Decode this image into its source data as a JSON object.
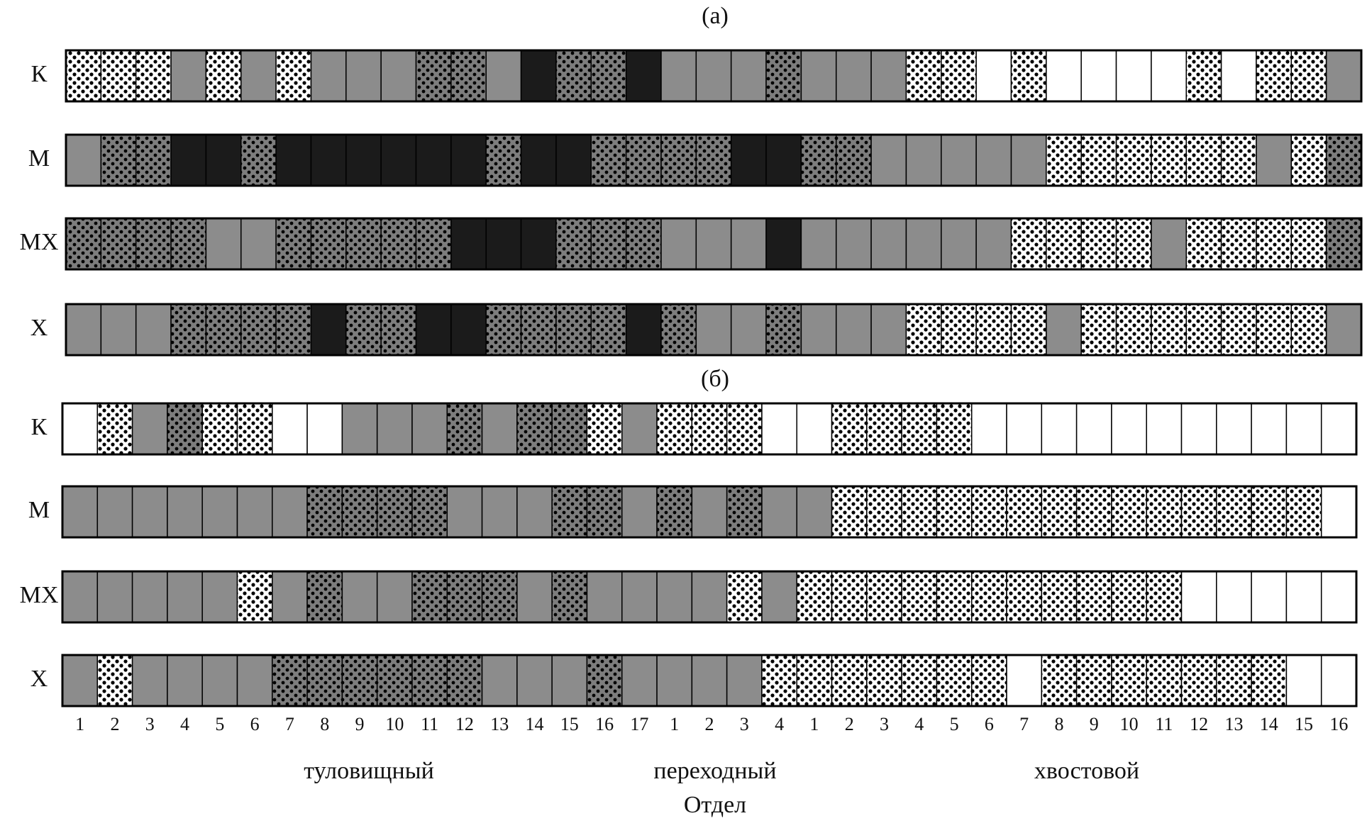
{
  "panels": [
    {
      "label": "(а)",
      "rows": [
        "К",
        "М",
        "МХ",
        "Х"
      ]
    },
    {
      "label": "(б)",
      "rows": [
        "К",
        "М",
        "МХ",
        "Х"
      ]
    }
  ],
  "sections": [
    {
      "name": "туловищный",
      "numbers": [
        1,
        2,
        3,
        4,
        5,
        6,
        7,
        8,
        9,
        10,
        11,
        12,
        13,
        14,
        15,
        16,
        17
      ]
    },
    {
      "name": "переходный",
      "numbers": [
        1,
        2,
        3,
        4
      ]
    },
    {
      "name": "хвостовой",
      "numbers": [
        1,
        2,
        3,
        4,
        5,
        6,
        7,
        8,
        9,
        10,
        11,
        12,
        13,
        14,
        15,
        16
      ]
    }
  ],
  "axis_title": "Отдел"
}
